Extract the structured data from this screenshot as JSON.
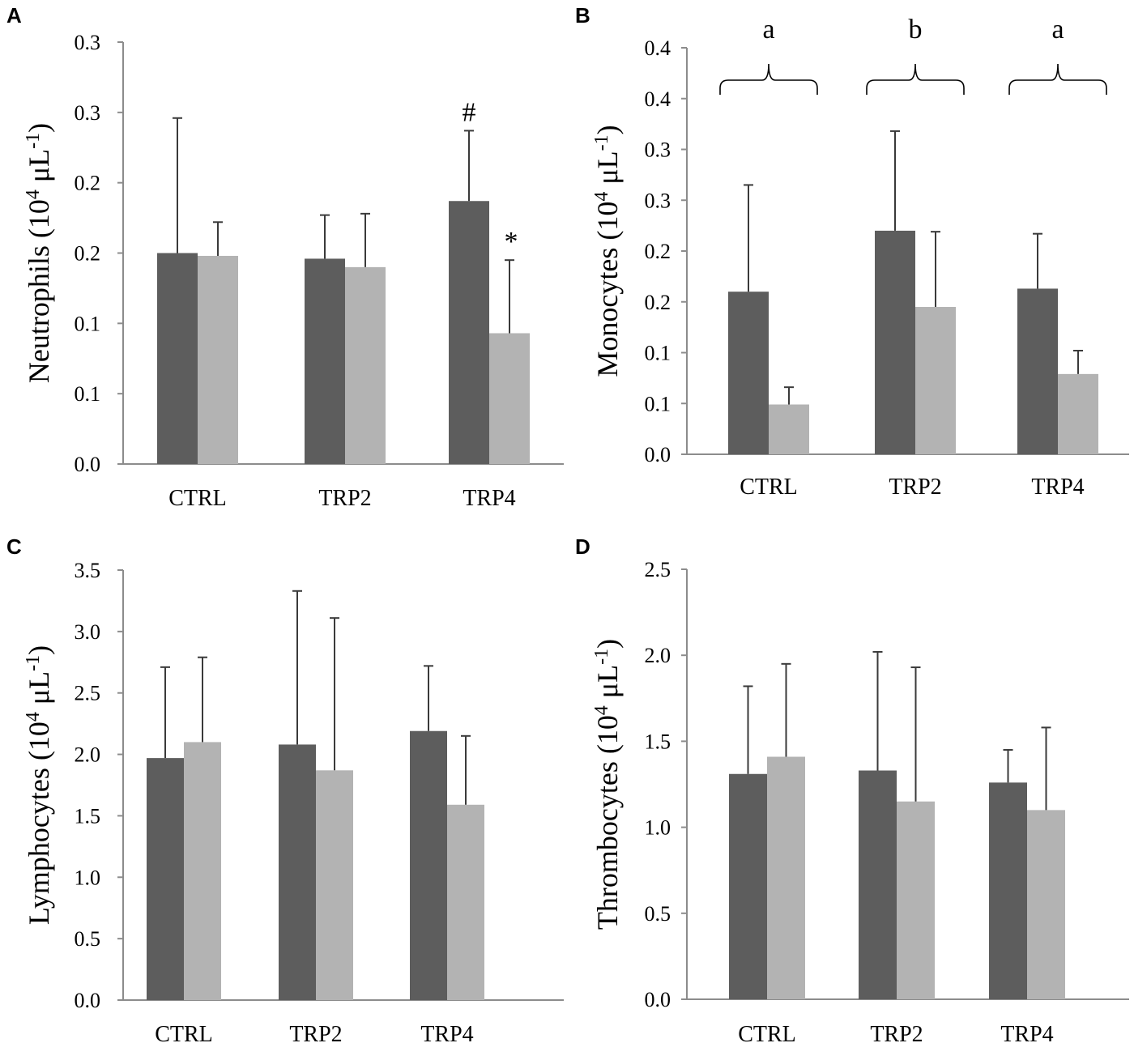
{
  "chart_data": [
    {
      "panel": "A",
      "type": "bar",
      "ylabel": "Neutrophils (10",
      "ylabel_exp": "4",
      "ylabel_unit": " μL",
      "ylabel_unit_exp": "-1",
      "ylabel_close": ")",
      "categories": [
        "CTRL",
        "TRP2",
        "TRP4"
      ],
      "ylim": [
        0,
        0.3
      ],
      "tick_labels": [
        "0.0",
        "0.1",
        "0.1",
        "0.2",
        "0.2",
        "0.3",
        "0.3"
      ],
      "series": [
        {
          "name": "dark",
          "color": "#5d5d5d",
          "values": [
            0.15,
            0.146,
            0.187
          ],
          "errors": [
            0.096,
            0.031,
            0.05
          ]
        },
        {
          "name": "light",
          "color": "#b3b3b3",
          "values": [
            0.148,
            0.14,
            0.093
          ],
          "errors": [
            0.024,
            0.038,
            0.052
          ]
        }
      ],
      "annotations": [
        {
          "text": "#",
          "category": 2,
          "series": 0
        },
        {
          "text": "*",
          "category": 2,
          "series": 1
        }
      ]
    },
    {
      "panel": "B",
      "type": "bar",
      "ylabel": "Monocytes (10",
      "ylabel_exp": "4",
      "ylabel_unit": " μL",
      "ylabel_unit_exp": "-1",
      "ylabel_close": ")",
      "categories": [
        "CTRL",
        "TRP2",
        "TRP4"
      ],
      "ylim": [
        0,
        0.4
      ],
      "tick_labels": [
        "0.0",
        "0.1",
        "0.1",
        "0.2",
        "0.2",
        "0.3",
        "0.3",
        "0.4",
        "0.4"
      ],
      "series": [
        {
          "name": "dark",
          "color": "#5d5d5d",
          "values": [
            0.16,
            0.22,
            0.163
          ],
          "errors": [
            0.105,
            0.098,
            0.054
          ]
        },
        {
          "name": "light",
          "color": "#b3b3b3",
          "values": [
            0.049,
            0.145,
            0.079
          ],
          "errors": [
            0.017,
            0.074,
            0.023
          ]
        }
      ],
      "group_letters": [
        "a",
        "b",
        "a"
      ]
    },
    {
      "panel": "C",
      "type": "bar",
      "ylabel": "Lymphocytes (10",
      "ylabel_exp": "4",
      "ylabel_unit": " μL",
      "ylabel_unit_exp": "-1",
      "ylabel_close": ")",
      "categories": [
        "CTRL",
        "TRP2",
        "TRP4"
      ],
      "ylim": [
        0,
        3.5
      ],
      "tick_labels": [
        "0.0",
        "0.5",
        "1.0",
        "1.5",
        "2.0",
        "2.5",
        "3.0",
        "3.5"
      ],
      "series": [
        {
          "name": "dark",
          "color": "#5d5d5d",
          "values": [
            1.97,
            2.08,
            2.19
          ],
          "errors": [
            0.74,
            1.25,
            0.53
          ]
        },
        {
          "name": "light",
          "color": "#b3b3b3",
          "values": [
            2.1,
            1.87,
            1.59
          ],
          "errors": [
            0.69,
            1.24,
            0.56
          ]
        }
      ]
    },
    {
      "panel": "D",
      "type": "bar",
      "ylabel": "Thrombocytes (10",
      "ylabel_exp": "4",
      "ylabel_unit": " μL",
      "ylabel_unit_exp": "-1",
      "ylabel_close": ")",
      "categories": [
        "CTRL",
        "TRP2",
        "TRP4"
      ],
      "ylim": [
        0,
        2.5
      ],
      "tick_labels": [
        "0.0",
        "0.5",
        "1.0",
        "1.5",
        "2.0",
        "2.5"
      ],
      "series": [
        {
          "name": "dark",
          "color": "#5d5d5d",
          "values": [
            1.31,
            1.33,
            1.26
          ],
          "errors": [
            0.51,
            0.69,
            0.19
          ]
        },
        {
          "name": "light",
          "color": "#b3b3b3",
          "values": [
            1.41,
            1.15,
            1.1
          ],
          "errors": [
            0.54,
            0.78,
            0.48
          ]
        }
      ]
    }
  ],
  "colors": {
    "axis": "#8c8c8c",
    "error": "#3a3a3a",
    "dark": "#5d5d5d",
    "light": "#b3b3b3"
  }
}
